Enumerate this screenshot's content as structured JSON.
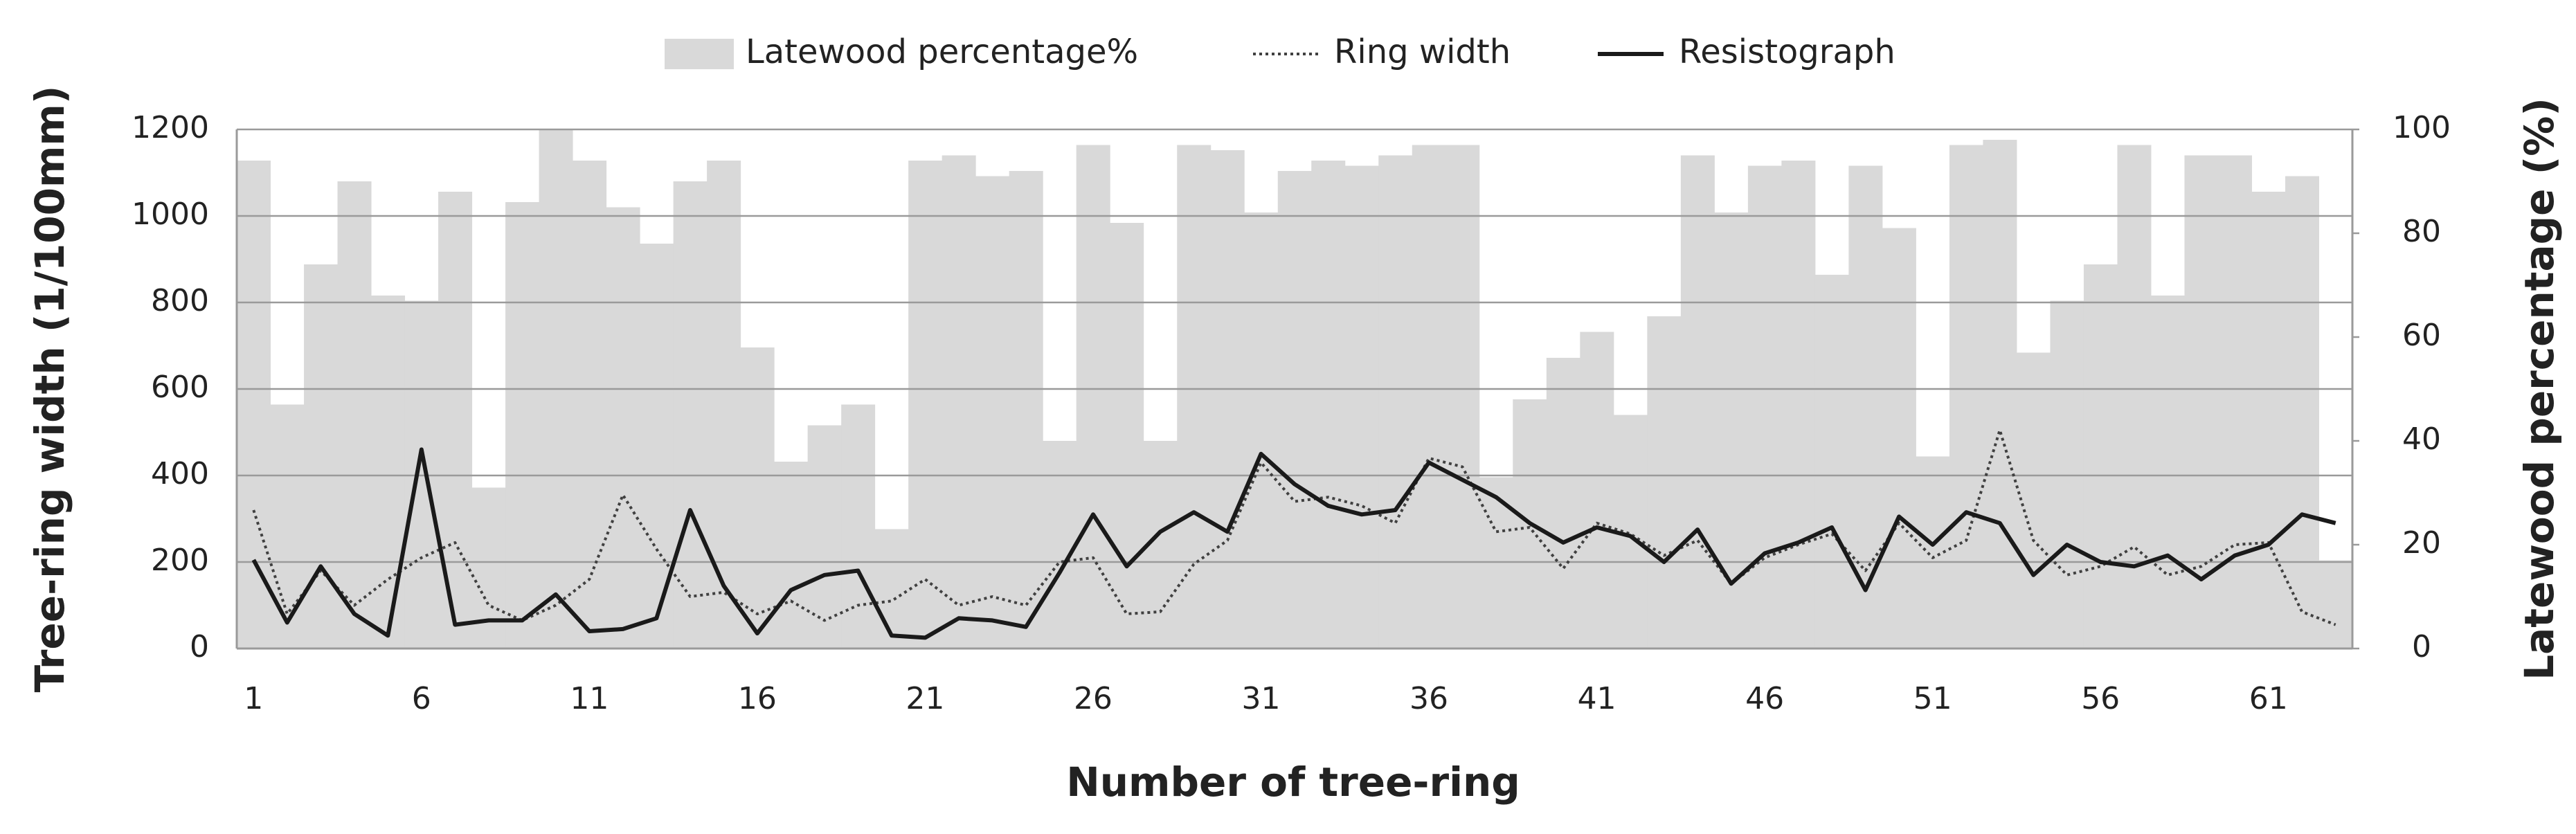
{
  "chart_data": {
    "type": "bar",
    "xlabel": "Number of tree-ring",
    "ylabel": "Tree-ring width  (1/100mm)",
    "y2label": "Latewood percentage (%)",
    "categories": [
      1,
      null,
      null,
      null,
      null,
      6,
      null,
      null,
      null,
      null,
      11,
      null,
      null,
      null,
      null,
      16,
      null,
      null,
      null,
      null,
      21,
      null,
      null,
      null,
      null,
      26,
      null,
      null,
      null,
      null,
      31,
      null,
      null,
      null,
      null,
      36,
      null,
      null,
      null,
      null,
      41,
      null,
      null,
      null,
      null,
      46,
      null,
      null,
      null,
      null,
      51,
      null,
      null,
      null,
      null,
      56,
      null,
      null,
      null,
      null,
      61,
      null,
      null
    ],
    "series": [
      {
        "name": "Latewood percentage%",
        "type": "bar",
        "axis": "y2",
        "color": "#d9d9d9",
        "values": [
          94,
          47,
          74,
          90,
          68,
          67,
          88,
          31,
          86,
          100,
          94,
          85,
          78,
          90,
          94,
          58,
          36,
          43,
          47,
          23,
          94,
          95,
          91,
          92,
          40,
          97,
          82,
          40,
          97,
          96,
          84,
          92,
          94,
          93,
          95,
          97,
          97,
          33,
          48,
          56,
          61,
          45,
          64,
          95,
          84,
          93,
          94,
          72,
          93,
          81,
          37,
          97,
          98,
          57,
          67,
          74,
          97,
          68,
          95,
          95,
          88,
          91,
          17
        ]
      },
      {
        "name": "Ring width",
        "type": "line",
        "dash": "dotted",
        "color": "#404040",
        "values": [
          320,
          80,
          180,
          100,
          160,
          210,
          245,
          100,
          65,
          100,
          160,
          355,
          230,
          120,
          130,
          80,
          110,
          65,
          100,
          110,
          160,
          100,
          120,
          100,
          200,
          210,
          80,
          85,
          195,
          250,
          430,
          340,
          350,
          330,
          290,
          440,
          420,
          270,
          280,
          185,
          290,
          265,
          215,
          250,
          150,
          210,
          240,
          265,
          180,
          290,
          210,
          250,
          505,
          250,
          170,
          190,
          235,
          170,
          190,
          240,
          245,
          85,
          55
        ]
      },
      {
        "name": "Resistograph",
        "type": "line",
        "dash": "solid",
        "color": "#1a1a1a",
        "values": [
          205,
          60,
          190,
          80,
          30,
          460,
          55,
          65,
          65,
          125,
          40,
          45,
          70,
          320,
          145,
          35,
          135,
          170,
          180,
          30,
          25,
          70,
          65,
          50,
          175,
          310,
          190,
          270,
          315,
          270,
          450,
          380,
          330,
          310,
          320,
          430,
          390,
          350,
          290,
          245,
          280,
          260,
          200,
          275,
          150,
          220,
          245,
          280,
          135,
          305,
          240,
          315,
          290,
          170,
          240,
          200,
          190,
          215,
          160,
          215,
          240,
          310,
          290
        ]
      }
    ],
    "ylim": [
      0,
      1200
    ],
    "yticks": [
      0,
      200,
      400,
      600,
      800,
      1000,
      1200
    ],
    "y2lim": [
      0,
      100
    ],
    "y2ticks": [
      0,
      20,
      40,
      60,
      80,
      100
    ],
    "grid": true,
    "legend": "top"
  }
}
